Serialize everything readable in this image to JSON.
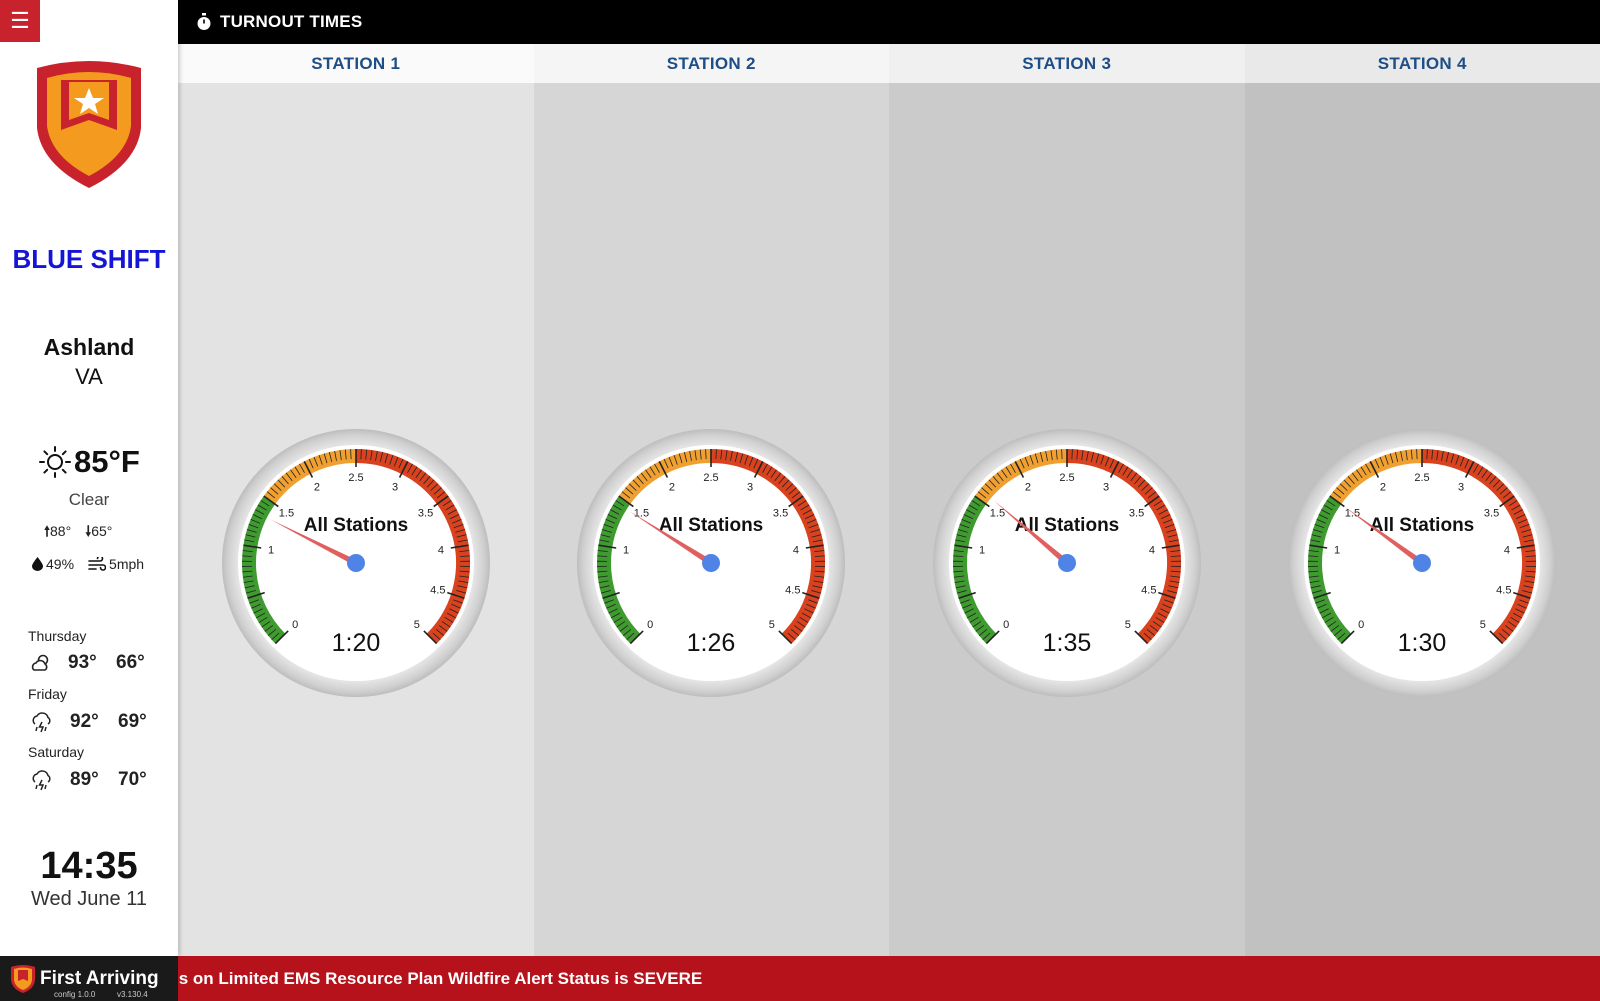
{
  "header": {
    "title": "TURNOUT TIMES",
    "icon": "stopwatch-icon",
    "menu_icon": "hamburger-menu-icon"
  },
  "sidebar": {
    "shift": "BLUE SHIFT",
    "city": "Ashland",
    "state": "VA",
    "weather": {
      "temp": "85°F",
      "condition": "Clear",
      "high": "88°",
      "low": "65°",
      "humidity": "49%",
      "wind": "5mph",
      "icon": "sun-icon"
    },
    "forecast": [
      {
        "day": "Thursday",
        "high": "93°",
        "low": "66°",
        "icon": "partly-cloudy-icon"
      },
      {
        "day": "Friday",
        "high": "92°",
        "low": "69°",
        "icon": "thunderstorm-icon"
      },
      {
        "day": "Saturday",
        "high": "89°",
        "low": "70°",
        "icon": "thunderstorm-icon"
      }
    ],
    "clock": "14:35",
    "date": "Wed June 11"
  },
  "stations": [
    {
      "name": "STATION 1",
      "label": "All Stations",
      "time": "1:20",
      "value_min": 1.333,
      "bg": "#e3e3e3"
    },
    {
      "name": "STATION 2",
      "label": "All Stations",
      "time": "1:26",
      "value_min": 1.433,
      "bg": "#d6d6d6"
    },
    {
      "name": "STATION 3",
      "label": "All Stations",
      "time": "1:35",
      "value_min": 1.583,
      "bg": "#cbcbcb"
    },
    {
      "name": "STATION 4",
      "label": "All Stations",
      "time": "1:30",
      "value_min": 1.5,
      "bg": "#c1c1c1"
    }
  ],
  "gauge": {
    "min": 0,
    "max": 5,
    "tick_labels": [
      "0",
      "1",
      "1.5",
      "2",
      "2.5",
      "3",
      "3.5",
      "4",
      "4.5",
      "5"
    ],
    "zones": [
      {
        "from": 0,
        "to": 1.5,
        "color": "#3f9a2f"
      },
      {
        "from": 1.5,
        "to": 2.5,
        "color": "#f0a030"
      },
      {
        "from": 2.5,
        "to": 5,
        "color": "#d8421e"
      }
    ]
  },
  "colors": {
    "brand_red": "#b5121b",
    "station_header": "#1e4e86",
    "shift_blue": "#1515d8"
  },
  "ticker": {
    "brand": "First Arriving",
    "config": "config 1.0.0",
    "version": "v3.130.4",
    "message": "ıs on Limited EMS Resource Plan Wildfire Alert Status is SEVERE"
  }
}
